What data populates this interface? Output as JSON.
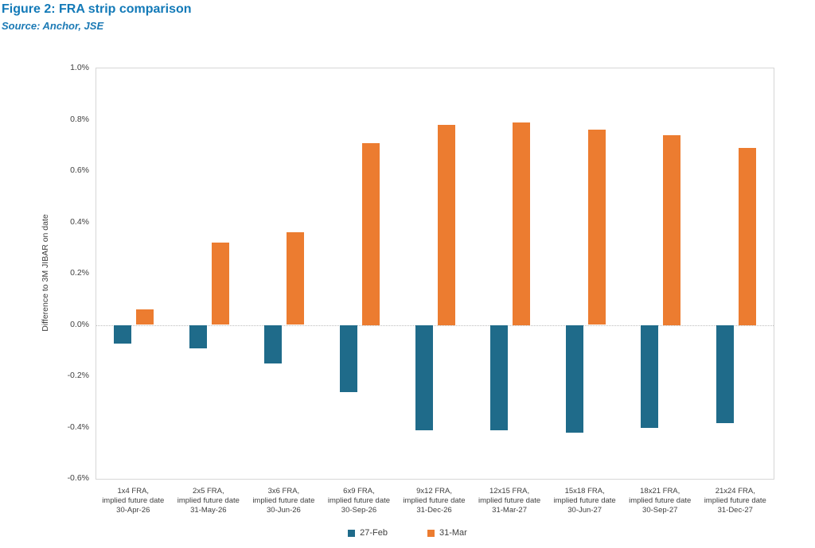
{
  "figure": {
    "title": "Figure 2: FRA strip comparison",
    "source": "Source: Anchor, JSE"
  },
  "colors": {
    "title_blue": "#137ab8",
    "series_feb": "#1f6b8a",
    "series_mar": "#ec7c30",
    "axis_text": "#3f3f3f",
    "plot_border": "#d6d6d6",
    "zero_line": "#bdbdbd"
  },
  "chart_data": {
    "type": "bar",
    "title": "Figure 2: FRA strip comparison",
    "xlabel": "",
    "ylabel": "Difference to 3M JIBAR on date",
    "ylim": [
      -0.6,
      1.0
    ],
    "ytick_step": 0.2,
    "ytick_labels": [
      "1.0%",
      "0.8%",
      "0.6%",
      "0.4%",
      "0.2%",
      "0.0%",
      "-0.2%",
      "-0.4%",
      "-0.6%"
    ],
    "grid": "zero-line-only",
    "legend_position": "bottom-center",
    "categories": [
      "1x4 FRA,\nimplied future date\n30-Apr-26",
      "2x5 FRA,\nimplied future date\n31-May-26",
      "3x6 FRA,\nimplied future date\n30-Jun-26",
      "6x9 FRA,\nimplied future date\n30-Sep-26",
      "9x12 FRA,\nimplied future date\n31-Dec-26",
      "12x15 FRA,\nimplied future date\n31-Mar-27",
      "15x18 FRA,\nimplied future date\n30-Jun-27",
      "18x21 FRA,\nimplied future date\n30-Sep-27",
      "21x24 FRA,\nimplied future date\n31-Dec-27"
    ],
    "series": [
      {
        "name": "27-Feb",
        "color": "#1f6b8a",
        "values": [
          -0.07,
          -0.09,
          -0.15,
          -0.26,
          -0.41,
          -0.41,
          -0.42,
          -0.4,
          -0.38
        ]
      },
      {
        "name": "31-Mar",
        "color": "#ec7c30",
        "values": [
          0.06,
          0.32,
          0.36,
          0.71,
          0.78,
          0.79,
          0.76,
          0.74,
          0.69
        ]
      }
    ],
    "value_unit": "%"
  }
}
